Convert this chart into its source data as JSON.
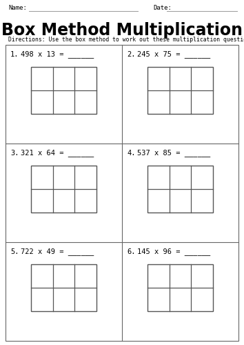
{
  "title": "Box Method Multiplication",
  "directions": "Directions: Use the box method to work out these multiplication questions.",
  "name_label": "Name:",
  "date_label": "Date:",
  "problems": [
    {
      "num": "1.",
      "equation": "498 x 13 = ______"
    },
    {
      "num": "2.",
      "equation": "245 x 75 = ______"
    },
    {
      "num": "3.",
      "equation": "321 x 64 = ______"
    },
    {
      "num": "4.",
      "equation": "537 x 85 = ______"
    },
    {
      "num": "5.",
      "equation": "722 x 49 = ______"
    },
    {
      "num": "6.",
      "equation": "145 x 96 = ______"
    }
  ],
  "bg_color": "#ffffff",
  "border_color": "#666666",
  "box_color": "#555555",
  "text_color": "#000000",
  "title_fontsize": 17,
  "label_fontsize": 6.5,
  "problem_num_fontsize": 7.5,
  "problem_eq_fontsize": 7.5,
  "directions_fontsize": 5.8
}
